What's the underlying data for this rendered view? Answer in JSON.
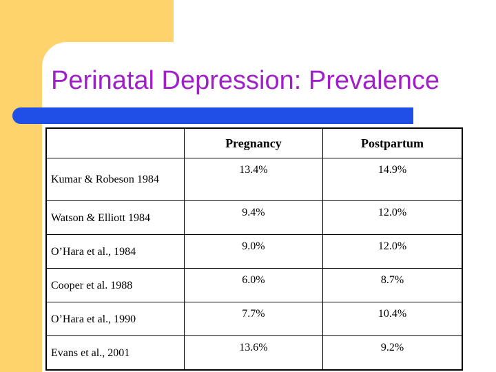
{
  "slide": {
    "title": "Perinatal Depression: Prevalence",
    "colors": {
      "accent": "#ffd36c",
      "title": "#a020c8",
      "bar": "#1f4fe6"
    }
  },
  "table": {
    "headers": [
      "",
      "Pregnancy",
      "Postpartum"
    ],
    "rows": [
      {
        "study": "Kumar & Robeson 1984",
        "pregnancy": "13.4%",
        "postpartum": "14.9%"
      },
      {
        "study": "Watson & Elliott 1984",
        "pregnancy": "9.4%",
        "postpartum": "12.0%"
      },
      {
        "study": "O’Hara et al., 1984",
        "pregnancy": "9.0%",
        "postpartum": "12.0%"
      },
      {
        "study": "Cooper et al. 1988",
        "pregnancy": "6.0%",
        "postpartum": "8.7%"
      },
      {
        "study": "O’Hara et al., 1990",
        "pregnancy": "7.7%",
        "postpartum": "10.4%"
      },
      {
        "study": "Evans et al., 2001",
        "pregnancy": "13.6%",
        "postpartum": "9.2%"
      }
    ]
  }
}
